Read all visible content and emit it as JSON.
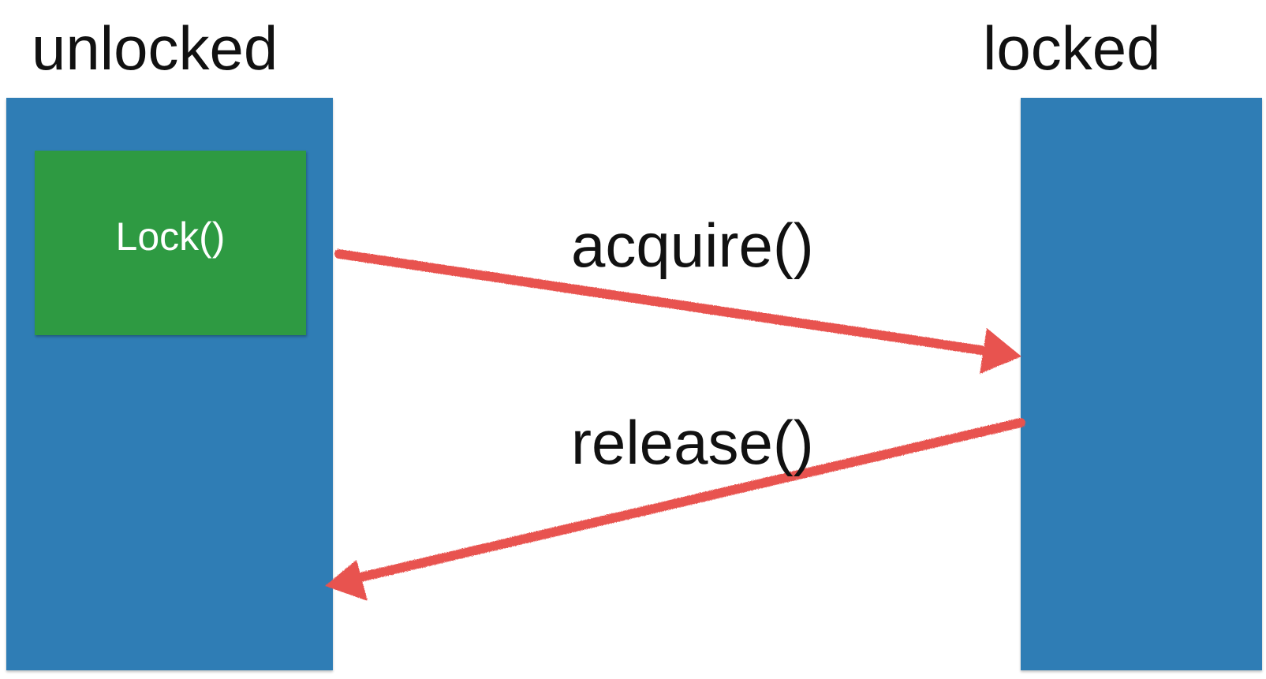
{
  "states": {
    "unlocked": {
      "label": "unlocked"
    },
    "locked": {
      "label": "locked"
    }
  },
  "lock_object": {
    "label": "Lock()"
  },
  "transitions": {
    "acquire": {
      "label": "acquire()"
    },
    "release": {
      "label": "release()"
    }
  },
  "colors": {
    "state_column": "#2f7db5",
    "lock_object": "#2e9a42",
    "arrow": "#e8524f",
    "text": "#111111",
    "lock_text": "#ffffff"
  }
}
